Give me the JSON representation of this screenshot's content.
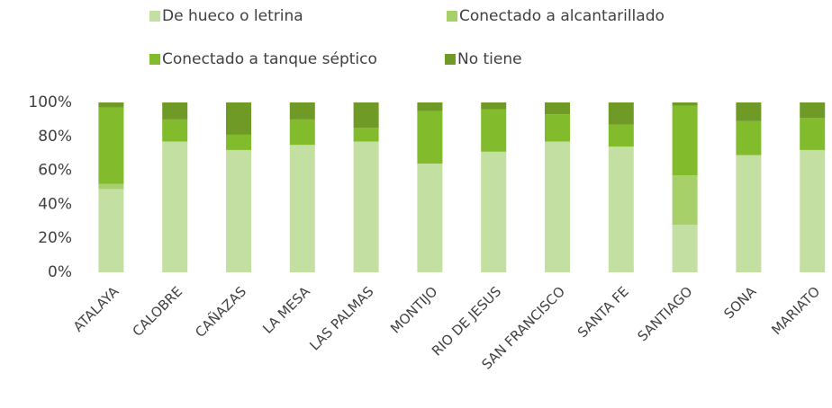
{
  "chart_data": {
    "type": "stacked_bar",
    "categories": [
      "ATALAYA",
      "CALOBRE",
      "CAÑAZAS",
      "LA MESA",
      "LAS PALMAS",
      "MONTIJO",
      "RIO DE JESUS",
      "SAN FRANCISCO",
      "SANTA FE",
      "SANTIAGO",
      "SONA",
      "MARIATO"
    ],
    "series": [
      {
        "name": "De hueco o letrina",
        "color": "#c4dfa2",
        "values": [
          49,
          77,
          72,
          75,
          77,
          64,
          71,
          77,
          74,
          28,
          69,
          72
        ]
      },
      {
        "name": "Conectado a alcantarillado",
        "color": "#a7d06a",
        "values": [
          3,
          0,
          0,
          0,
          0,
          0,
          0,
          0,
          0,
          29,
          0,
          0
        ]
      },
      {
        "name": "Conectado a tanque séptico",
        "color": "#82bb2c",
        "values": [
          45,
          13,
          9,
          15,
          8,
          31,
          25,
          16,
          13,
          41,
          20,
          19
        ]
      },
      {
        "name": "No tiene",
        "color": "#6e9a25",
        "values": [
          3,
          10,
          19,
          10,
          15,
          5,
          4,
          7,
          13,
          2,
          11,
          9
        ]
      }
    ],
    "ylim": [
      0,
      100
    ],
    "yticks": [
      {
        "value": 0,
        "label": "0%"
      },
      {
        "value": 20,
        "label": "20%"
      },
      {
        "value": 40,
        "label": "40%"
      },
      {
        "value": 60,
        "label": "60%"
      },
      {
        "value": 80,
        "label": "80%"
      },
      {
        "value": 100,
        "label": "100%"
      }
    ],
    "grid": false
  }
}
